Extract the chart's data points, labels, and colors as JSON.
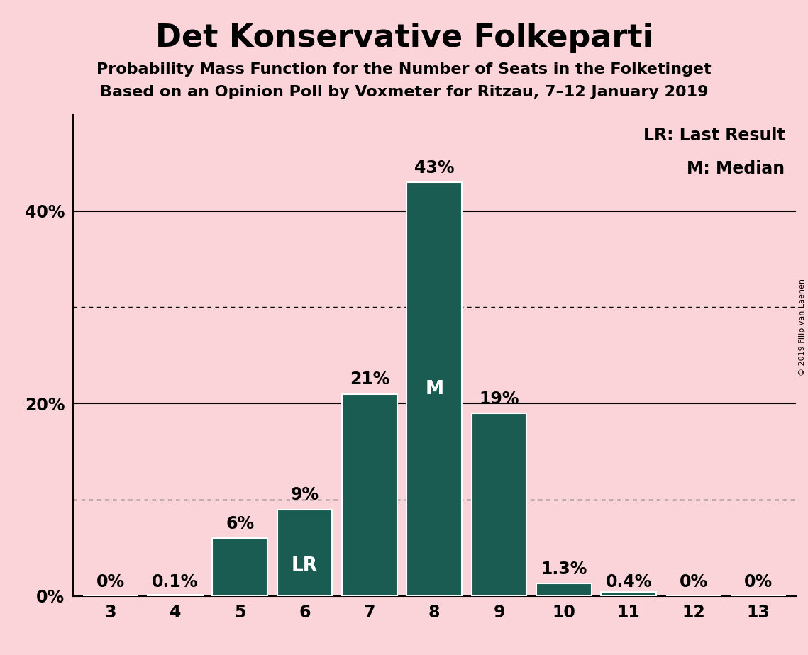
{
  "title": "Det Konservative Folkeparti",
  "subtitle1": "Probability Mass Function for the Number of Seats in the Folketinget",
  "subtitle2": "Based on an Opinion Poll by Voxmeter for Ritzau, 7–12 January 2019",
  "copyright": "© 2019 Filip van Laenen",
  "categories": [
    3,
    4,
    5,
    6,
    7,
    8,
    9,
    10,
    11,
    12,
    13
  ],
  "values": [
    0.0,
    0.1,
    6.0,
    9.0,
    21.0,
    43.0,
    19.0,
    1.3,
    0.4,
    0.0,
    0.0
  ],
  "labels": [
    "0%",
    "0.1%",
    "6%",
    "9%",
    "21%",
    "43%",
    "19%",
    "1.3%",
    "0.4%",
    "0%",
    "0%"
  ],
  "bar_color": "#1a5c52",
  "background_color": "#fad4d8",
  "bar_edge_color": "#ffffff",
  "median_bar": 8,
  "lr_bar": 6,
  "median_label": "M",
  "lr_label": "LR",
  "legend_lr": "LR: Last Result",
  "legend_m": "M: Median",
  "ylim": [
    0,
    50
  ],
  "solid_yticks": [
    20,
    40
  ],
  "dotted_yticks": [
    10,
    30
  ],
  "ytick_positions": [
    0,
    20,
    40
  ],
  "ytick_labels": [
    "0%",
    "20%",
    "40%"
  ],
  "title_fontsize": 32,
  "subtitle_fontsize": 16,
  "axis_fontsize": 17,
  "legend_fontsize": 17,
  "bar_label_fontsize": 17,
  "inside_label_fontsize": 19,
  "copyright_fontsize": 8
}
